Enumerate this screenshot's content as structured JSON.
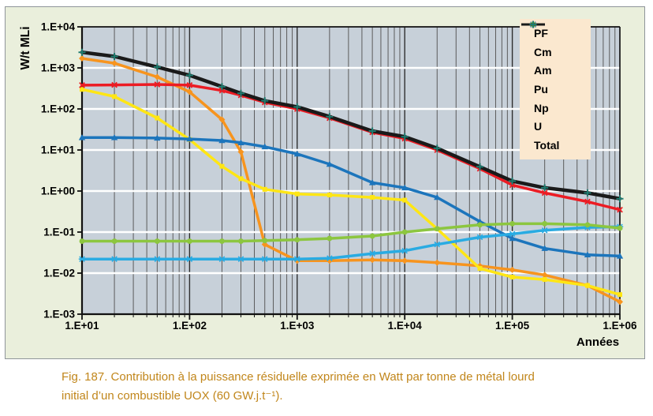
{
  "figure": {
    "caption_line1": "Fig. 187. Contribution à la puissance résiduelle exprimée en Watt par tonne de métal lourd",
    "caption_line2": "initial d’un combustible UOX (60 GW.j.t⁻¹)."
  },
  "chart_data": {
    "type": "line",
    "title": "",
    "xlabel": "Années",
    "ylabel": "W/t MLi",
    "x_scale": "log",
    "y_scale": "log",
    "xlim": [
      10,
      1000000
    ],
    "ylim": [
      0.001,
      10000
    ],
    "x_ticks": [
      10,
      100,
      1000,
      10000,
      100000,
      1000000
    ],
    "x_tick_labels": [
      "1.E+01",
      "1.E+02",
      "1.E+03",
      "1.E+04",
      "1.E+05",
      "1.E+06"
    ],
    "y_ticks": [
      10000,
      1000,
      100,
      10,
      1,
      0.1,
      0.01,
      0.001
    ],
    "y_tick_labels": [
      "1.E+04",
      "1.E+03",
      "1.E+02",
      "1.E+01",
      "1.E+00",
      "1.E-01",
      "1.E-02",
      "1.E-03"
    ],
    "grid": {
      "vertical_minor_log": true,
      "horizontal_major_white": true
    },
    "legend_position": "top-right",
    "x": [
      10,
      20,
      50,
      100,
      200,
      300,
      500,
      1000,
      2000,
      5000,
      10000,
      20000,
      50000,
      100000,
      200000,
      500000,
      1000000
    ],
    "series": [
      {
        "name": "PF",
        "color": "#F7941E",
        "marker": "diamond",
        "values": [
          1700,
          1300,
          600,
          260,
          55,
          9,
          0.05,
          0.02,
          0.02,
          0.021,
          0.02,
          0.018,
          0.015,
          0.012,
          0.009,
          0.005,
          0.002
        ]
      },
      {
        "name": "Cm",
        "color": "#FFE614",
        "marker": "square",
        "values": [
          300,
          200,
          60,
          18,
          4,
          2,
          1.1,
          0.85,
          0.8,
          0.7,
          0.6,
          0.12,
          0.013,
          0.008,
          0.007,
          0.005,
          0.003
        ]
      },
      {
        "name": "Am",
        "color": "#1C75BC",
        "marker": "triangle",
        "values": [
          20,
          20,
          19.5,
          18.5,
          17,
          15,
          12,
          8,
          4.5,
          1.6,
          1.2,
          0.7,
          0.18,
          0.07,
          0.04,
          0.028,
          0.026
        ]
      },
      {
        "name": "Pu",
        "color": "#EC1C24",
        "marker": "x",
        "values": [
          380,
          385,
          395,
          380,
          280,
          215,
          145,
          100,
          60,
          27,
          19,
          10,
          3.5,
          1.4,
          0.9,
          0.55,
          0.35
        ]
      },
      {
        "name": "Np",
        "color": "#29ABE2",
        "marker": "star",
        "values": [
          0.022,
          0.022,
          0.022,
          0.022,
          0.022,
          0.022,
          0.022,
          0.022,
          0.023,
          0.03,
          0.035,
          0.05,
          0.075,
          0.09,
          0.11,
          0.13,
          0.135
        ]
      },
      {
        "name": "U",
        "color": "#8CC63F",
        "marker": "circle",
        "values": [
          0.06,
          0.06,
          0.06,
          0.06,
          0.06,
          0.06,
          0.062,
          0.065,
          0.07,
          0.08,
          0.1,
          0.12,
          0.15,
          0.16,
          0.16,
          0.15,
          0.125
        ]
      },
      {
        "name": "Total",
        "color": "#1A1A1A",
        "marker": "plus",
        "marker_color": "#1E7B6F",
        "values": [
          2400,
          1900,
          1050,
          660,
          350,
          240,
          158,
          112,
          65,
          29,
          21,
          11,
          3.9,
          1.75,
          1.2,
          0.9,
          0.65
        ]
      }
    ],
    "colors": {
      "plot_bg": "#C7D0D9",
      "figure_bg": "#EAEFDC",
      "legend_bg": "#FBE8CF",
      "grid_minor": "#5B5B5B",
      "grid_major": "#2E2E2E",
      "grid_white": "#FFFFFF",
      "axis": "#111111",
      "caption": "#C1861B"
    }
  }
}
